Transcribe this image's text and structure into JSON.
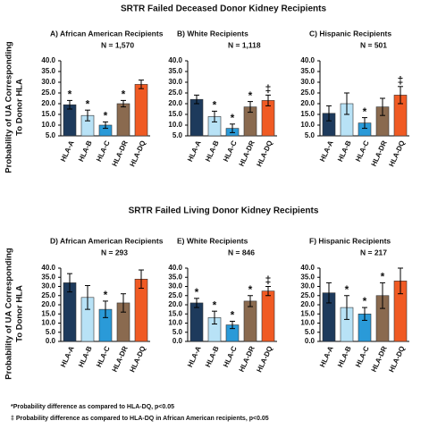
{
  "section_titles": [
    "SRTR Failed Deceased Donor Kidney Recipients",
    "SRTR Failed Living Donor Kidney Recipients"
  ],
  "footnotes": [
    "*Probability difference as compared to HLA-DQ, p<0.05",
    "‡ Probability difference as compared to HLA-DQ in African American recipients, p<0.05"
  ],
  "chart_data": [
    {
      "type": "bar",
      "title": "A) African American Recipients",
      "subtitle": "N = 1,570",
      "ylabel": [
        "Probability of UA Corresponding",
        "To Donor HLA"
      ],
      "categories": [
        "HLA-A",
        "HLA-B",
        "HLA-C",
        "HLA-DR",
        "HLA-DQ"
      ],
      "values": [
        19.5,
        14.5,
        10,
        20,
        29
      ],
      "errors": [
        2,
        2.5,
        1.5,
        1.5,
        2
      ],
      "annotations": [
        "*",
        "*",
        "*",
        "*",
        null
      ],
      "colors": [
        "#1d3a5c",
        "#b8e2f6",
        "#2a9ad8",
        "#8a6a4f",
        "#f05a23"
      ],
      "ylim": [
        5,
        40
      ],
      "yticks": [
        {
          "value": 5,
          "label": "5.0"
        },
        {
          "value": 10,
          "label": "10.0"
        },
        {
          "value": 15,
          "label": "15.0"
        },
        {
          "value": 20,
          "label": "20.0"
        },
        {
          "value": 25,
          "label": "25.0"
        },
        {
          "value": 30,
          "label": "30.0"
        },
        {
          "value": 35,
          "label": "35.0"
        },
        {
          "value": 40,
          "label": "40.0"
        }
      ]
    },
    {
      "type": "bar",
      "title": "B) White Recipients",
      "subtitle": "N = 1,118",
      "categories": [
        "HLA-A",
        "HLA-B",
        "HLA-C",
        "HLA-DR",
        "HLA-DQ"
      ],
      "values": [
        22,
        14,
        8.5,
        18.5,
        21.5
      ],
      "errors": [
        2,
        2.5,
        2,
        2.5,
        2.5
      ],
      "annotations": [
        null,
        "*",
        "*",
        "*",
        "‡"
      ],
      "colors": [
        "#1d3a5c",
        "#b8e2f6",
        "#2a9ad8",
        "#8a6a4f",
        "#f05a23"
      ],
      "ylim": [
        5,
        40
      ],
      "yticks": [
        {
          "value": 5,
          "label": "5.0"
        },
        {
          "value": 10,
          "label": "10.0"
        },
        {
          "value": 15,
          "label": "15.0"
        },
        {
          "value": 20,
          "label": "20.0"
        },
        {
          "value": 25,
          "label": "25.0"
        },
        {
          "value": 30,
          "label": "30.0"
        },
        {
          "value": 35,
          "label": "35.0"
        },
        {
          "value": 40,
          "label": "40.0"
        }
      ]
    },
    {
      "type": "bar",
      "title": "C) Hispanic Recipients",
      "subtitle": "N = 501",
      "categories": [
        "HLA-A",
        "HLA-B",
        "HLA-C",
        "HLA-DR",
        "HLA-DQ"
      ],
      "values": [
        15.5,
        20,
        11,
        18.5,
        24
      ],
      "errors": [
        3.5,
        5,
        2.5,
        4,
        4
      ],
      "annotations": [
        null,
        null,
        "*",
        null,
        "‡"
      ],
      "colors": [
        "#1d3a5c",
        "#b8e2f6",
        "#2a9ad8",
        "#8a6a4f",
        "#f05a23"
      ],
      "ylim": [
        5,
        40
      ],
      "yticks": [
        {
          "value": 5,
          "label": "5.0"
        },
        {
          "value": 10,
          "label": "10.0"
        },
        {
          "value": 15,
          "label": "15.0"
        },
        {
          "value": 20,
          "label": "20.0"
        },
        {
          "value": 25,
          "label": "25.0"
        },
        {
          "value": 30,
          "label": "30.0"
        },
        {
          "value": 35,
          "label": "35.0"
        },
        {
          "value": 40,
          "label": "40.0"
        }
      ]
    },
    {
      "type": "bar",
      "title": "D) African American Recipients",
      "subtitle": "N = 293",
      "ylabel": [
        "Probability of UA Corresponding",
        "To Donor HLA"
      ],
      "categories": [
        "HLA-A",
        "HLA-B",
        "HLA-C",
        "HLA-DR",
        "HLA-DQ"
      ],
      "values": [
        32,
        24,
        17.5,
        21,
        34
      ],
      "errors": [
        5,
        6.5,
        4.5,
        5,
        5
      ],
      "annotations": [
        null,
        null,
        "*",
        null,
        null
      ],
      "colors": [
        "#1d3a5c",
        "#b8e2f6",
        "#2a9ad8",
        "#8a6a4f",
        "#f05a23"
      ],
      "ylim": [
        0,
        40
      ],
      "yticks": [
        {
          "value": 0,
          "label": "0.0"
        },
        {
          "value": 5,
          "label": "5.0"
        },
        {
          "value": 10,
          "label": "10.0"
        },
        {
          "value": 15,
          "label": "15.0"
        },
        {
          "value": 20,
          "label": "20.0"
        },
        {
          "value": 25,
          "label": "25.0"
        },
        {
          "value": 30,
          "label": "30.0"
        },
        {
          "value": 35,
          "label": "35.0"
        },
        {
          "value": 40,
          "label": "40.0"
        }
      ]
    },
    {
      "type": "bar",
      "title": "E) White Recipients",
      "subtitle": "N = 846",
      "categories": [
        "HLA-A",
        "HLA-B",
        "HLA-C",
        "HLA-DR",
        "HLA-DQ"
      ],
      "values": [
        21,
        13,
        9,
        22,
        27.5
      ],
      "errors": [
        2.5,
        3.5,
        2,
        3,
        2.5
      ],
      "annotations": [
        "*",
        "*",
        "*",
        "*",
        "‡"
      ],
      "colors": [
        "#1d3a5c",
        "#b8e2f6",
        "#2a9ad8",
        "#8a6a4f",
        "#f05a23"
      ],
      "ylim": [
        0,
        40
      ],
      "yticks": [
        {
          "value": 0,
          "label": "0.0"
        },
        {
          "value": 5,
          "label": "5.0"
        },
        {
          "value": 10,
          "label": "10.0"
        },
        {
          "value": 15,
          "label": "15.0"
        },
        {
          "value": 20,
          "label": "20.0"
        },
        {
          "value": 25,
          "label": "25.0"
        },
        {
          "value": 30,
          "label": "30.0"
        },
        {
          "value": 35,
          "label": "35.0"
        },
        {
          "value": 40,
          "label": "40.0"
        }
      ]
    },
    {
      "type": "bar",
      "title": "F) Hispanic Recipients",
      "subtitle": "N = 217",
      "categories": [
        "HLA-A",
        "HLA-B",
        "HLA-C",
        "HLA-DR",
        "HLA-DQ"
      ],
      "values": [
        26.5,
        18.5,
        15,
        25,
        33
      ],
      "errors": [
        5.5,
        6.5,
        3.5,
        7,
        7
      ],
      "annotations": [
        null,
        "*",
        "*",
        "*",
        null
      ],
      "colors": [
        "#1d3a5c",
        "#b8e2f6",
        "#2a9ad8",
        "#8a6a4f",
        "#f05a23"
      ],
      "ylim": [
        0,
        40
      ],
      "yticks": [
        {
          "value": 0,
          "label": "0.0"
        },
        {
          "value": 5,
          "label": "5.0"
        },
        {
          "value": 10,
          "label": "10.0"
        },
        {
          "value": 15,
          "label": "15.0"
        },
        {
          "value": 20,
          "label": "20.0"
        },
        {
          "value": 25,
          "label": "25.0"
        },
        {
          "value": 30,
          "label": "30.0"
        },
        {
          "value": 35,
          "label": "35.0"
        },
        {
          "value": 40,
          "label": "40.0"
        }
      ]
    }
  ]
}
